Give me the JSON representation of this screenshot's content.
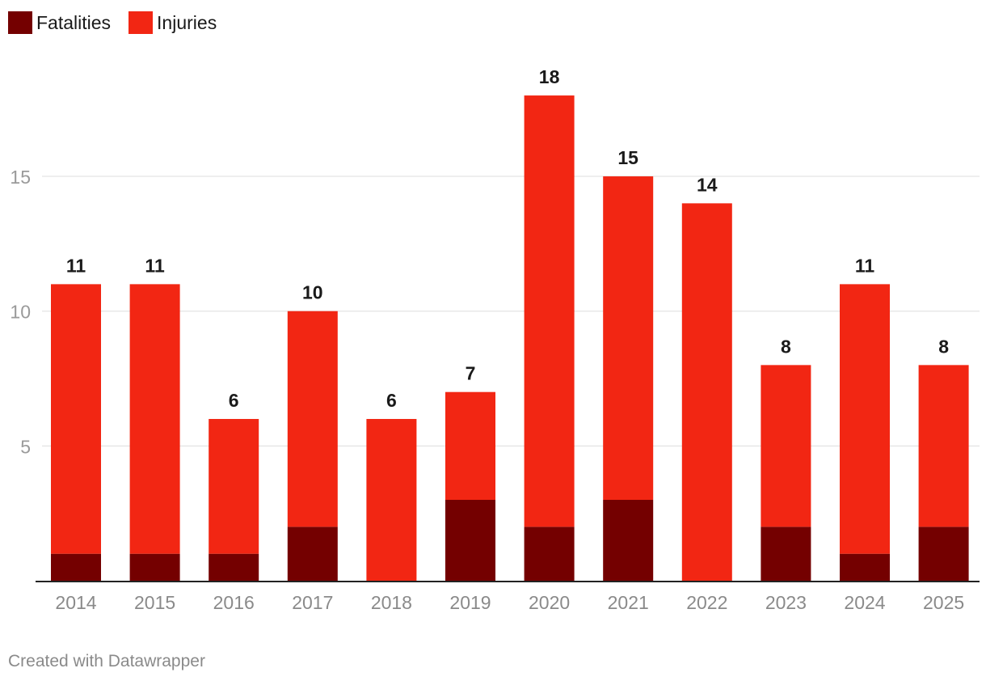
{
  "legend": {
    "items": [
      {
        "label": "Fatalities",
        "color": "#740000"
      },
      {
        "label": "Injuries",
        "color": "#f22613"
      }
    ]
  },
  "chart_data": {
    "type": "bar",
    "stacked": true,
    "categories": [
      "2014",
      "2015",
      "2016",
      "2017",
      "2018",
      "2019",
      "2020",
      "2021",
      "2022",
      "2023",
      "2024",
      "2025"
    ],
    "series": [
      {
        "name": "Fatalities",
        "color": "#740000",
        "values": [
          1,
          1,
          1,
          2,
          0,
          3,
          2,
          3,
          0,
          2,
          1,
          2
        ]
      },
      {
        "name": "Injuries",
        "color": "#f22613",
        "values": [
          10,
          10,
          5,
          8,
          6,
          4,
          16,
          12,
          14,
          6,
          10,
          6
        ]
      }
    ],
    "totals": [
      11,
      11,
      6,
      10,
      6,
      7,
      18,
      15,
      14,
      8,
      11,
      8
    ],
    "y_ticks": [
      5,
      10,
      15
    ],
    "ylim": [
      0,
      18
    ],
    "title": "",
    "xlabel": "",
    "ylabel": ""
  },
  "footer": {
    "credit": "Created with Datawrapper"
  }
}
